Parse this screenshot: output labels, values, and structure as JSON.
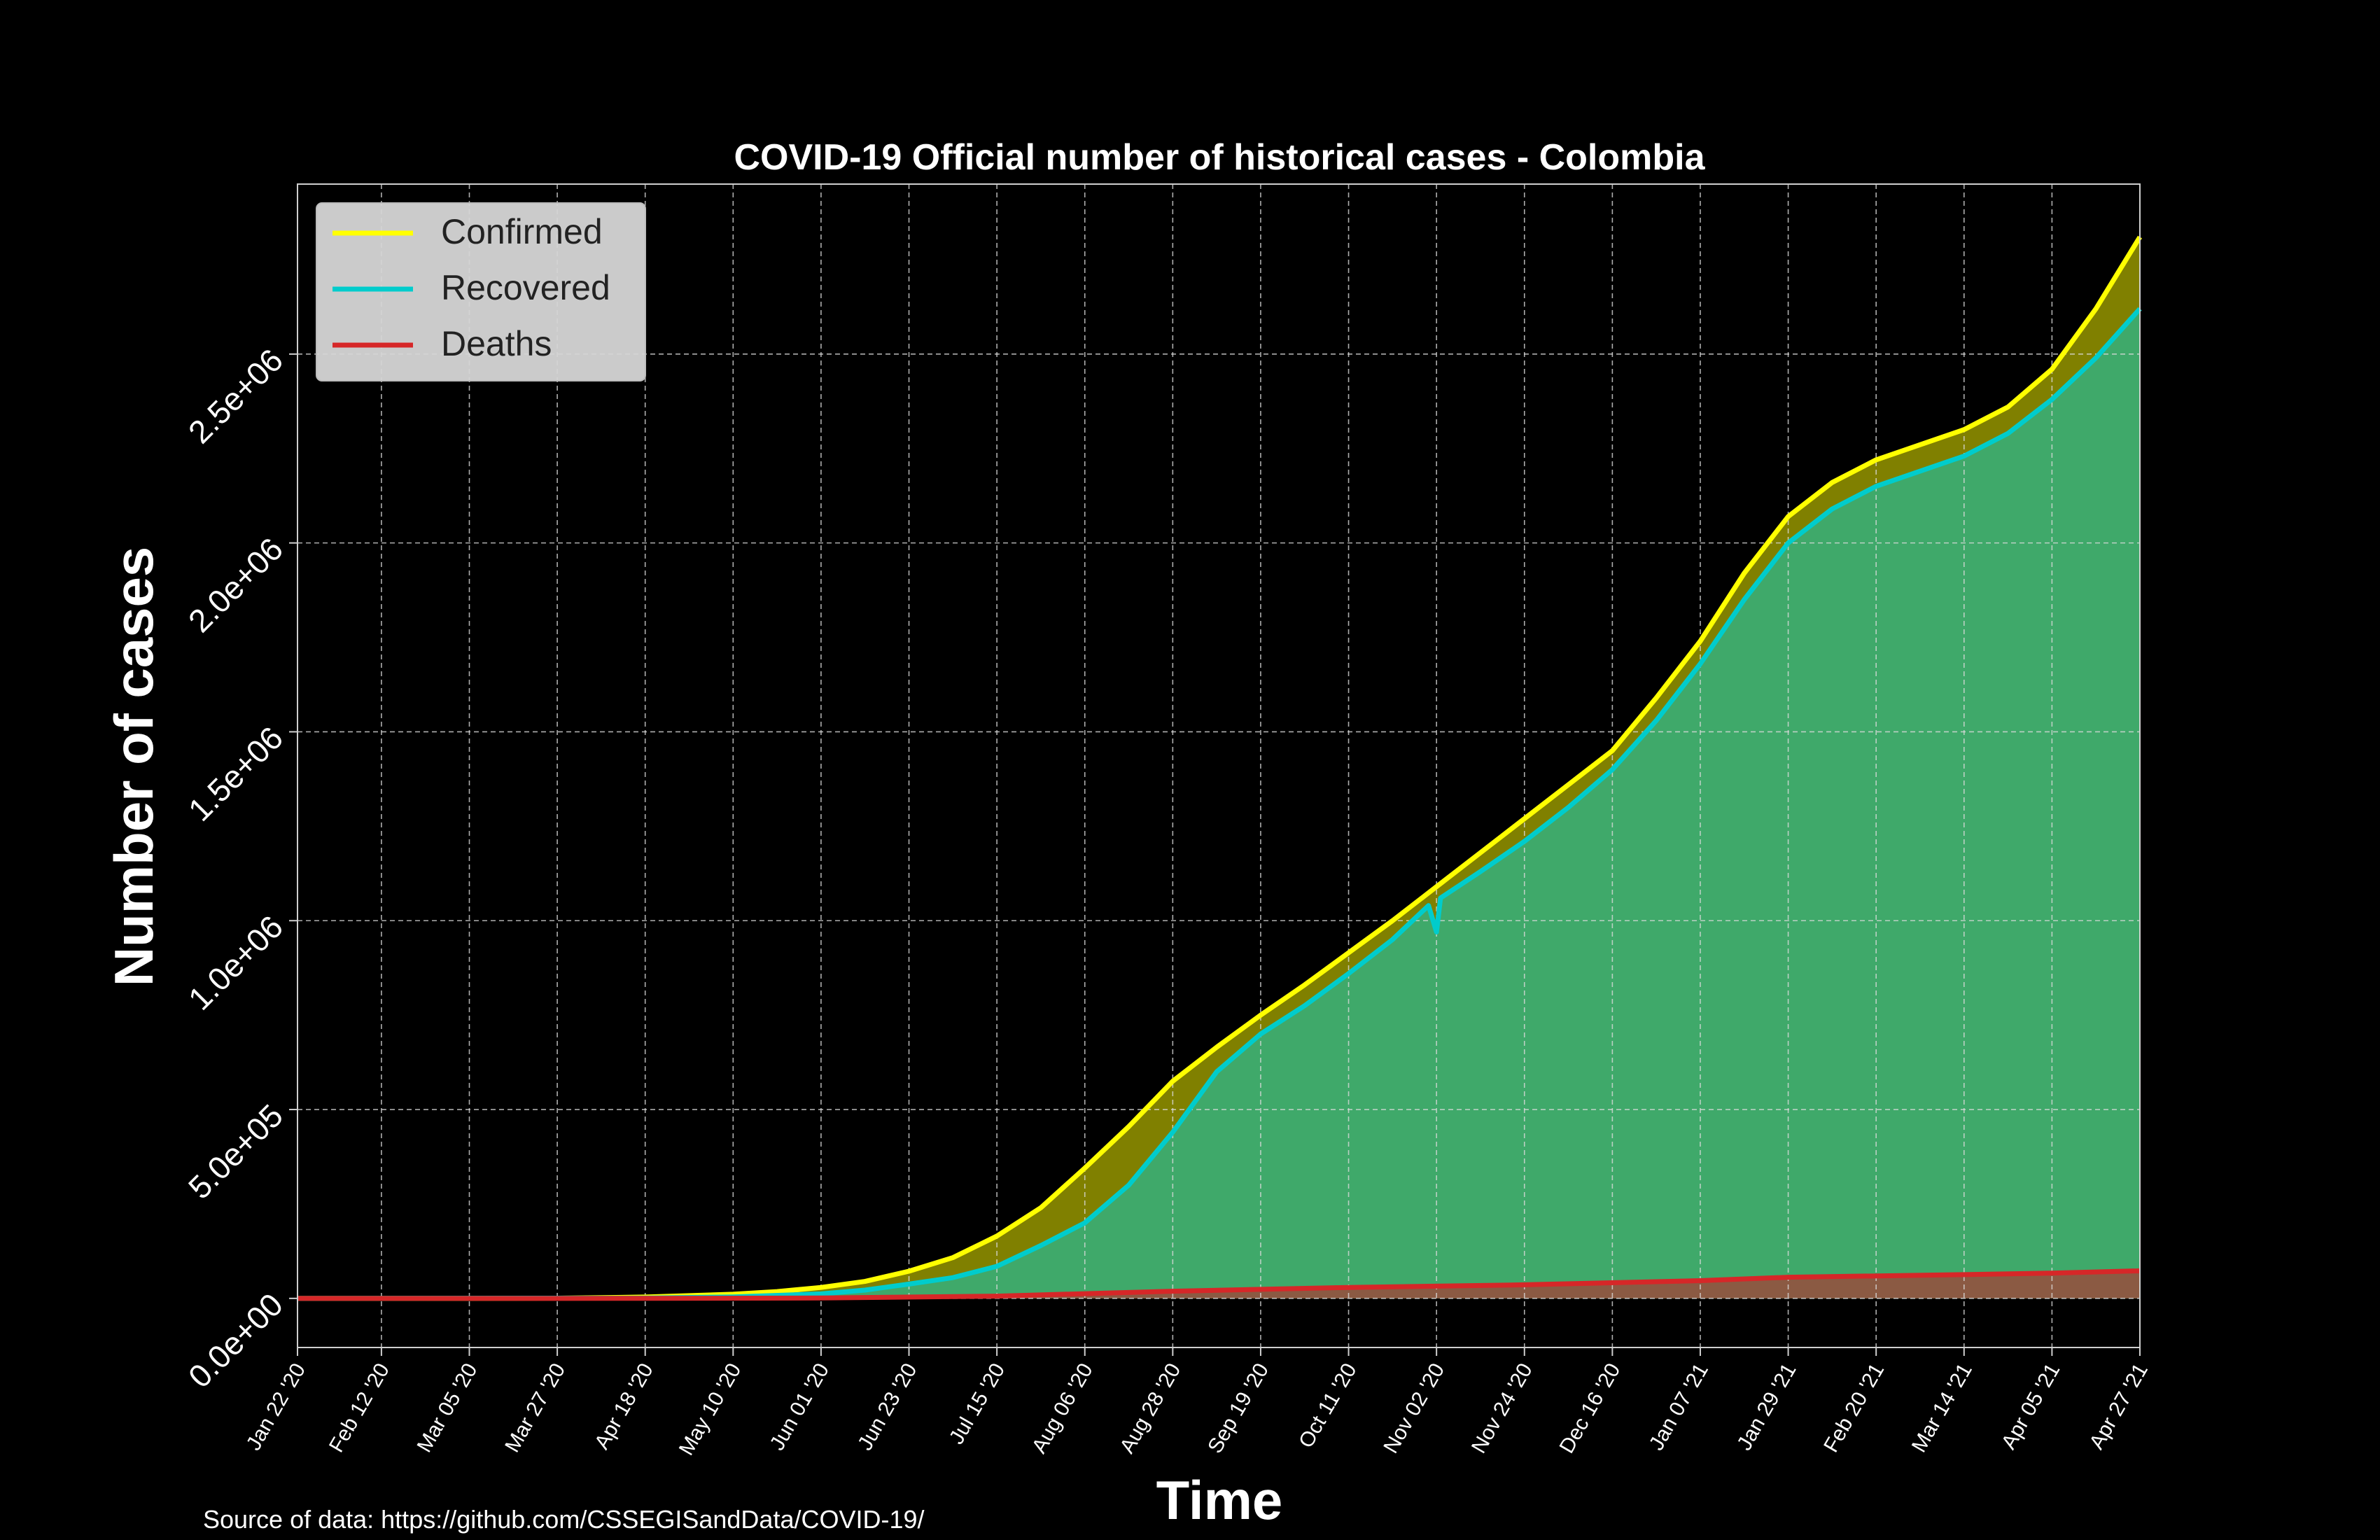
{
  "chart_data": {
    "type": "area",
    "title": "COVID-19 Official number of historical cases - Colombia",
    "xlabel": "Time",
    "ylabel": "Number of cases",
    "source": "Source of data: https://github.com/CSSEGISandData/COVID-19/",
    "x_start": "2020-01-22",
    "x_end": "2021-04-27",
    "xlim": [
      0,
      461
    ],
    "ylim": [
      -130000,
      2950000
    ],
    "grid": true,
    "legend_position": "top-left",
    "x_ticks": [
      {
        "label": "Jan 22 '20",
        "day": 0
      },
      {
        "label": "Feb 12 '20",
        "day": 21
      },
      {
        "label": "Mar 05 '20",
        "day": 43
      },
      {
        "label": "Mar 27 '20",
        "day": 65
      },
      {
        "label": "Apr 18 '20",
        "day": 87
      },
      {
        "label": "May 10 '20",
        "day": 109
      },
      {
        "label": "Jun 01 '20",
        "day": 131
      },
      {
        "label": "Jun 23 '20",
        "day": 153
      },
      {
        "label": "Jul 15 '20",
        "day": 175
      },
      {
        "label": "Aug 06 '20",
        "day": 197
      },
      {
        "label": "Aug 28 '20",
        "day": 219
      },
      {
        "label": "Sep 19 '20",
        "day": 241
      },
      {
        "label": "Oct 11 '20",
        "day": 263
      },
      {
        "label": "Nov 02 '20",
        "day": 285
      },
      {
        "label": "Nov 24 '20",
        "day": 307
      },
      {
        "label": "Dec 16 '20",
        "day": 329
      },
      {
        "label": "Jan 07 '21",
        "day": 351
      },
      {
        "label": "Jan 29 '21",
        "day": 373
      },
      {
        "label": "Feb 20 '21",
        "day": 395
      },
      {
        "label": "Mar 14 '21",
        "day": 417
      },
      {
        "label": "Apr 05 '21",
        "day": 439
      },
      {
        "label": "Apr 27 '21",
        "day": 461
      }
    ],
    "y_ticks": [
      {
        "label": "0.0e+00",
        "value": 0
      },
      {
        "label": "5.0e+05",
        "value": 500000
      },
      {
        "label": "1.0e+06",
        "value": 1000000
      },
      {
        "label": "1.5e+06",
        "value": 1500000
      },
      {
        "label": "2.0e+06",
        "value": 2000000
      },
      {
        "label": "2.5e+06",
        "value": 2500000
      }
    ],
    "series": [
      {
        "name": "Confirmed",
        "color": "#ffff00",
        "fill": "#808000",
        "points": [
          [
            0,
            0
          ],
          [
            43,
            0
          ],
          [
            65,
            600
          ],
          [
            87,
            3600
          ],
          [
            109,
            11000
          ],
          [
            120,
            18000
          ],
          [
            131,
            29000
          ],
          [
            142,
            45000
          ],
          [
            153,
            72000
          ],
          [
            164,
            108000
          ],
          [
            175,
            165000
          ],
          [
            186,
            240000
          ],
          [
            197,
            345000
          ],
          [
            208,
            455000
          ],
          [
            219,
            575000
          ],
          [
            230,
            665000
          ],
          [
            241,
            750000
          ],
          [
            252,
            830000
          ],
          [
            263,
            915000
          ],
          [
            274,
            1000000
          ],
          [
            285,
            1090000
          ],
          [
            296,
            1180000
          ],
          [
            307,
            1270000
          ],
          [
            318,
            1360000
          ],
          [
            329,
            1450000
          ],
          [
            340,
            1590000
          ],
          [
            351,
            1740000
          ],
          [
            362,
            1920000
          ],
          [
            373,
            2070000
          ],
          [
            384,
            2160000
          ],
          [
            395,
            2220000
          ],
          [
            406,
            2260000
          ],
          [
            417,
            2300000
          ],
          [
            428,
            2360000
          ],
          [
            439,
            2460000
          ],
          [
            450,
            2620000
          ],
          [
            461,
            2810000
          ]
        ]
      },
      {
        "name": "Recovered",
        "color": "#00cccc",
        "fill": "#3fa96a",
        "points": [
          [
            0,
            0
          ],
          [
            87,
            800
          ],
          [
            109,
            4000
          ],
          [
            131,
            12000
          ],
          [
            142,
            22000
          ],
          [
            153,
            38000
          ],
          [
            164,
            55000
          ],
          [
            175,
            85000
          ],
          [
            186,
            140000
          ],
          [
            197,
            200000
          ],
          [
            208,
            300000
          ],
          [
            219,
            440000
          ],
          [
            230,
            600000
          ],
          [
            241,
            700000
          ],
          [
            252,
            775000
          ],
          [
            263,
            860000
          ],
          [
            274,
            950000
          ],
          [
            283,
            1040000
          ],
          [
            285,
            970000
          ],
          [
            286,
            1060000
          ],
          [
            296,
            1130000
          ],
          [
            307,
            1210000
          ],
          [
            318,
            1300000
          ],
          [
            329,
            1400000
          ],
          [
            340,
            1530000
          ],
          [
            351,
            1680000
          ],
          [
            362,
            1850000
          ],
          [
            373,
            2000000
          ],
          [
            384,
            2090000
          ],
          [
            395,
            2150000
          ],
          [
            406,
            2190000
          ],
          [
            417,
            2230000
          ],
          [
            428,
            2290000
          ],
          [
            439,
            2380000
          ],
          [
            450,
            2490000
          ],
          [
            461,
            2620000
          ]
        ]
      },
      {
        "name": "Deaths",
        "color": "#d62728",
        "fill": "#8b5a43",
        "points": [
          [
            0,
            0
          ],
          [
            65,
            20
          ],
          [
            87,
            200
          ],
          [
            131,
            1000
          ],
          [
            175,
            6000
          ],
          [
            219,
            19000
          ],
          [
            263,
            29000
          ],
          [
            307,
            36000
          ],
          [
            351,
            47000
          ],
          [
            373,
            56000
          ],
          [
            417,
            63000
          ],
          [
            439,
            67000
          ],
          [
            461,
            73000
          ]
        ]
      }
    ]
  }
}
